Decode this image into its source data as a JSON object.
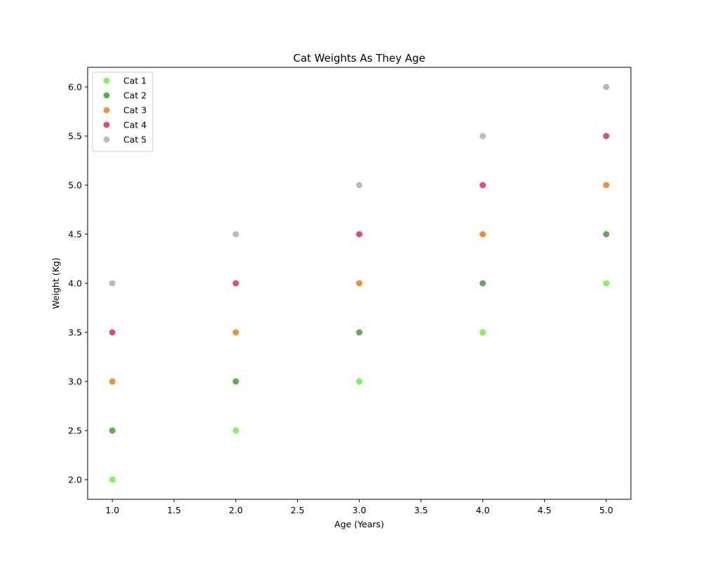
{
  "chart_data": {
    "type": "scatter",
    "title": "Cat Weights As They Age",
    "xlabel": "Age (Years)",
    "ylabel": "Weight (Kg)",
    "xlim": [
      0.8,
      5.2
    ],
    "ylim": [
      1.8,
      6.2
    ],
    "xticks": [
      "1.0",
      "1.5",
      "2.0",
      "2.5",
      "3.0",
      "3.5",
      "4.0",
      "4.5",
      "5.0"
    ],
    "yticks": [
      "2.0",
      "2.5",
      "3.0",
      "3.5",
      "4.0",
      "4.5",
      "5.0",
      "5.5",
      "6.0"
    ],
    "grid": false,
    "legend_position": "upper-left",
    "x": [
      1,
      2,
      3,
      4,
      5
    ],
    "series": [
      {
        "name": "Cat 1",
        "color": "#7ff55a",
        "values": [
          2.0,
          2.5,
          3.0,
          3.5,
          4.0
        ]
      },
      {
        "name": "Cat 2",
        "color": "#65a756",
        "values": [
          2.5,
          3.0,
          3.5,
          4.0,
          4.5
        ]
      },
      {
        "name": "Cat 3",
        "color": "#e8923b",
        "values": [
          3.0,
          3.5,
          4.0,
          4.5,
          5.0
        ]
      },
      {
        "name": "Cat 4",
        "color": "#d85177",
        "values": [
          3.5,
          4.0,
          4.5,
          5.0,
          5.5
        ]
      },
      {
        "name": "Cat 5",
        "color": "#bbbbbb",
        "values": [
          4.0,
          4.5,
          5.0,
          5.5,
          6.0
        ]
      }
    ]
  }
}
